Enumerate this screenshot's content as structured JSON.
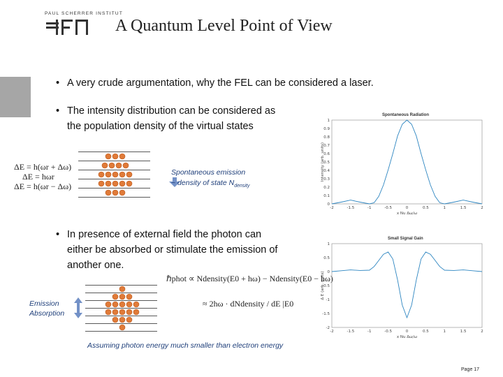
{
  "header": {
    "title": "A Quantum Level Point of View",
    "logo_text": "PAUL SCHERRER INSTITUT",
    "logo_mark": "PSI"
  },
  "bullets": {
    "b1": "A very crude argumentation, why the FEL can be considered a laser.",
    "b2_line1": "The intensity distribution can be considered as",
    "b2_line2": "the population density of the virtual states",
    "b3_line1": "In presence of external field the photon can",
    "b3_line2": "either be absorbed or stimulate the emission of",
    "b3_line3": "another one."
  },
  "diagram1": {
    "energy_top": "ΔE = h(ωr + Δω)",
    "energy_mid": "ΔE = hωr",
    "energy_bot": "ΔE = h(ωr − Δω)",
    "note_line1": "Spontaneous emission",
    "note_line2": "~ density of state N",
    "note_sub": "density",
    "dots_per_row": [
      3,
      4,
      5,
      5,
      3
    ]
  },
  "diagram2": {
    "label_emission": "Emission",
    "label_absorption": "Absorption",
    "dots_per_row": [
      1,
      3,
      5,
      5,
      3,
      1
    ],
    "eq_line1": "ℏphot ∝ Ndensity(E0 + hω) − Ndensity(E0 − hω)",
    "eq_approx": "≈ 2hω · dNdensity / dE |E0",
    "footnote": "Assuming photon energy much smaller than electron energy"
  },
  "chart_data": [
    {
      "type": "line",
      "title": "Spontaneous Radiation",
      "ylabel": "Intensity (arb. units)",
      "xlabel": "x Nu Δω/ω",
      "xlim": [
        -2,
        2
      ],
      "ylim": [
        0,
        1
      ],
      "xticks": [
        -2,
        -1.5,
        -1,
        -0.5,
        0,
        0.5,
        1,
        1.5,
        2
      ],
      "yticks": [
        0,
        0.1,
        0.2,
        0.3,
        0.4,
        0.5,
        0.6,
        0.7,
        0.8,
        0.9,
        1
      ],
      "series": [
        {
          "x": [
            -2.0,
            -1.75,
            -1.5,
            -1.25,
            -1.0,
            -0.875,
            -0.75,
            -0.625,
            -0.5,
            -0.375,
            -0.25,
            -0.125,
            0.0,
            0.125,
            0.25,
            0.375,
            0.5,
            0.625,
            0.75,
            0.875,
            1.0,
            1.25,
            1.5,
            1.75,
            2.0
          ],
          "y": [
            0.0,
            0.021,
            0.045,
            0.021,
            0.0,
            0.013,
            0.09,
            0.226,
            0.405,
            0.6,
            0.811,
            0.95,
            1.0,
            0.95,
            0.811,
            0.6,
            0.405,
            0.226,
            0.09,
            0.013,
            0.0,
            0.021,
            0.045,
            0.021,
            0.0
          ]
        }
      ]
    },
    {
      "type": "line",
      "title": "Small Signal Gain",
      "ylabel": "Δ E (arb. units)",
      "xlabel": "x Nu Δω/ω",
      "xlim": [
        -2,
        2
      ],
      "ylim": [
        -2,
        1
      ],
      "xticks": [
        -2,
        -1.5,
        -1,
        -0.5,
        0,
        0.5,
        1,
        1.5,
        2
      ],
      "yticks": [
        -2,
        -1.5,
        -1,
        -0.5,
        0,
        0.5,
        1
      ],
      "series": [
        {
          "x": [
            -2.0,
            -1.75,
            -1.5,
            -1.25,
            -1.0,
            -0.875,
            -0.75,
            -0.625,
            -0.5,
            -0.375,
            -0.25,
            -0.125,
            0.0,
            0.125,
            0.25,
            0.375,
            0.5,
            0.625,
            0.75,
            0.875,
            1.0,
            1.25,
            1.5,
            1.75,
            2.0
          ],
          "y": [
            0.0,
            0.03,
            0.06,
            0.04,
            0.05,
            0.18,
            0.4,
            0.62,
            0.7,
            0.45,
            -0.3,
            -1.2,
            -1.65,
            -1.2,
            -0.3,
            0.45,
            0.7,
            0.62,
            0.4,
            0.18,
            0.05,
            0.04,
            0.06,
            0.03,
            0.0
          ]
        }
      ]
    }
  ],
  "footer": {
    "page": "Page 17"
  }
}
